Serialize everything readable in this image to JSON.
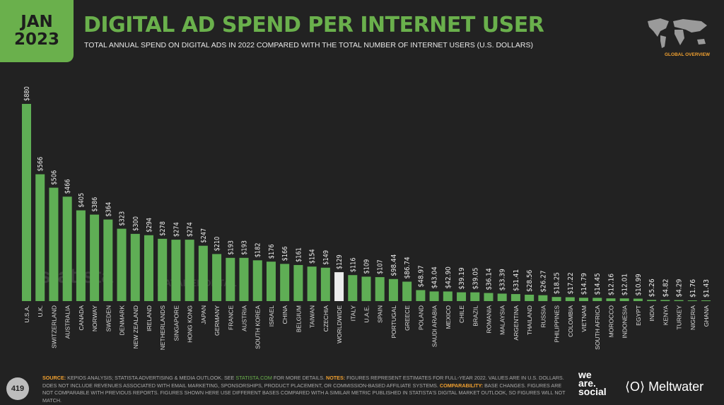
{
  "header": {
    "month": "JAN",
    "year": "2023",
    "title": "DIGITAL AD SPEND PER INTERNET USER",
    "subtitle": "TOTAL ANNUAL SPEND ON DIGITAL ADS IN 2022 COMPARED WITH THE TOTAL NUMBER OF INTERNET USERS (U.S. DOLLARS)",
    "section": "GLOBAL OVERVIEW"
  },
  "colors": {
    "bar": "#5fae55",
    "highlight": "#ececec",
    "title": "#6ab04c",
    "accent": "#f0a030",
    "background": "#222222"
  },
  "chart_data": {
    "type": "bar",
    "title": "DIGITAL AD SPEND PER INTERNET USER",
    "ylim": [
      0,
      880
    ],
    "grid": false,
    "highlight": "WORLDWIDE",
    "categories": [
      "U.S.A.",
      "U.K.",
      "SWITZERLAND",
      "AUSTRALIA",
      "CANADA",
      "NORWAY",
      "SWEDEN",
      "DENMARK",
      "NEW ZEALAND",
      "IRELAND",
      "NETHERLANDS",
      "SINGAPORE",
      "HONG KONG",
      "JAPAN",
      "GERMANY",
      "FRANCE",
      "AUSTRIA",
      "SOUTH KOREA",
      "ISRAEL",
      "CHINA",
      "BELGIUM",
      "TAIWAN",
      "CZECHIA",
      "WORLDWIDE",
      "ITALY",
      "U.A.E.",
      "SPAIN",
      "PORTUGAL",
      "GREECE",
      "POLAND",
      "SAUDI ARABIA",
      "MEXICO",
      "CHILE",
      "BRAZIL",
      "ROMANIA",
      "MALAYSIA",
      "ARGENTINA",
      "THAILAND",
      "RUSSIA",
      "PHILIPPINES",
      "COLOMBIA",
      "VIETNAM",
      "SOUTH AFRICA",
      "MOROCCO",
      "INDONESIA",
      "EGYPT",
      "INDIA",
      "KENYA",
      "TURKEY",
      "NIGERIA",
      "GHANA"
    ],
    "values": [
      880,
      566,
      506,
      466,
      405,
      386,
      364,
      323,
      300,
      294,
      278,
      274,
      274,
      247,
      210,
      193,
      193,
      182,
      176,
      166,
      161,
      154,
      149,
      129,
      116,
      109,
      107,
      98.44,
      86.74,
      48.97,
      43.04,
      42.9,
      39.19,
      39.05,
      36.14,
      33.39,
      31.41,
      28.56,
      26.27,
      18.25,
      17.22,
      14.79,
      14.45,
      12.16,
      12.01,
      10.99,
      5.26,
      4.82,
      4.29,
      1.76,
      1.43
    ],
    "labels": [
      "$880",
      "$566",
      "$506",
      "$466",
      "$405",
      "$386",
      "$364",
      "$323",
      "$300",
      "$294",
      "$278",
      "$274",
      "$274",
      "$247",
      "$210",
      "$193",
      "$193",
      "$182",
      "$176",
      "$166",
      "$161",
      "$154",
      "$149",
      "$129",
      "$116",
      "$109",
      "$107",
      "$98.44",
      "$86.74",
      "$48.97",
      "$43.04",
      "$42.90",
      "$39.19",
      "$39.05",
      "$36.14",
      "$33.39",
      "$31.41",
      "$28.56",
      "$26.27",
      "$18.25",
      "$17.22",
      "$14.79",
      "$14.45",
      "$12.16",
      "$12.01",
      "$10.99",
      "$5.26",
      "$4.82",
      "$4.29",
      "$1.76",
      "$1.43"
    ]
  },
  "watermarks": {
    "statista": "statista",
    "datareportal": "DATAREPORTAL"
  },
  "footer": {
    "page": "419",
    "source_key": "SOURCE:",
    "source": "KEPIOS ANALYSIS; STATISTA ADVERTISING & MEDIA OUTLOOK. SEE",
    "source_link": "STATISTA.COM",
    "source_tail": "FOR MORE DETAILS.",
    "notes_key": "NOTES:",
    "notes": "FIGURES REPRESENT ESTIMATES FOR FULL-YEAR 2022. VALUES ARE IN U.S. DOLLARS. DOES NOT INCLUDE REVENUES ASSOCIATED WITH EMAIL MARKETING, SPONSORSHIPS, PRODUCT PLACEMENT, OR COMMISSION-BASED AFFILIATE SYSTEMS.",
    "comparability_key": "COMPARABILITY:",
    "comparability": "BASE CHANGES. FIGURES ARE NOT COMPARABLE WITH PREVIOUS REPORTS. FIGURES SHOWN HERE USE DIFFERENT BASES COMPARED WITH A SIMILAR METRIC PUBLISHED IN STATISTA'S DIGITAL MARKET OUTLOOK, SO FIGURES WILL NOT MATCH.",
    "logo_we_are_social": "we are social",
    "logo_meltwater": "Meltwater"
  }
}
